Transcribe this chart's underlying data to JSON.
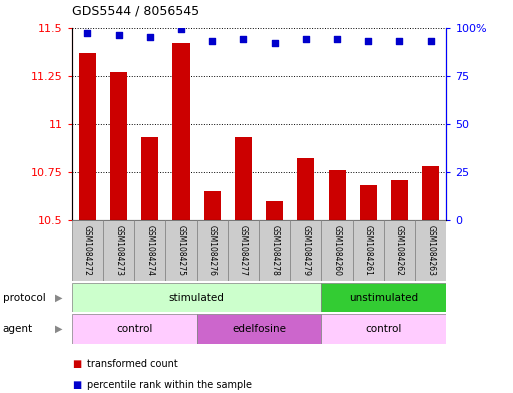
{
  "title": "GDS5544 / 8056545",
  "samples": [
    "GSM1084272",
    "GSM1084273",
    "GSM1084274",
    "GSM1084275",
    "GSM1084276",
    "GSM1084277",
    "GSM1084278",
    "GSM1084279",
    "GSM1084260",
    "GSM1084261",
    "GSM1084262",
    "GSM1084263"
  ],
  "transformed_counts": [
    11.37,
    11.27,
    10.93,
    11.42,
    10.65,
    10.93,
    10.6,
    10.82,
    10.76,
    10.68,
    10.71,
    10.78
  ],
  "percentile_ranks": [
    97,
    96,
    95,
    99,
    93,
    94,
    92,
    94,
    94,
    93,
    93,
    93
  ],
  "ylim_left": [
    10.5,
    11.5
  ],
  "ylim_right": [
    0,
    100
  ],
  "yticks_left": [
    10.5,
    10.75,
    11.0,
    11.25,
    11.5
  ],
  "ytick_labels_left": [
    "10.5",
    "10.75",
    "11",
    "11.25",
    "11.5"
  ],
  "yticks_right": [
    0,
    25,
    50,
    75,
    100
  ],
  "ytick_labels_right": [
    "0",
    "25",
    "50",
    "75",
    "100%"
  ],
  "bar_color": "#cc0000",
  "dot_color": "#0000cc",
  "grid_color": "#000000",
  "protocol_groups": [
    {
      "label": "stimulated",
      "start": 0,
      "end": 8,
      "color": "#ccffcc"
    },
    {
      "label": "unstimulated",
      "start": 8,
      "end": 12,
      "color": "#33cc33"
    }
  ],
  "agent_groups": [
    {
      "label": "control",
      "start": 0,
      "end": 4,
      "color": "#ffccff"
    },
    {
      "label": "edelfosine",
      "start": 4,
      "end": 8,
      "color": "#cc66cc"
    },
    {
      "label": "control",
      "start": 8,
      "end": 12,
      "color": "#ffccff"
    }
  ],
  "legend_items": [
    {
      "label": "transformed count",
      "color": "#cc0000"
    },
    {
      "label": "percentile rank within the sample",
      "color": "#0000cc"
    }
  ],
  "protocol_label": "protocol",
  "agent_label": "agent",
  "bg_color": "#ffffff",
  "sample_bg_color": "#cccccc",
  "arrow_color": "#888888"
}
